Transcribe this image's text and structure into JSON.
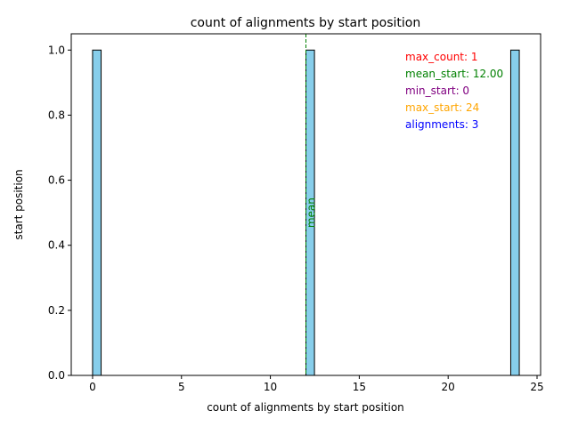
{
  "chart_data": {
    "type": "bar",
    "title": "count of alignments by start position",
    "xlabel": "count of alignments by start position",
    "ylabel": "start position",
    "xlim": [
      -1.2,
      25.2
    ],
    "ylim": [
      0,
      1.05
    ],
    "xticks": [
      0,
      5,
      10,
      15,
      20,
      25
    ],
    "yticks": [
      0.0,
      0.2,
      0.4,
      0.6,
      0.8,
      1.0
    ],
    "bars": [
      {
        "start": 0.0,
        "end": 0.48,
        "value": 1
      },
      {
        "start": 12.0,
        "end": 12.48,
        "value": 1
      },
      {
        "start": 23.52,
        "end": 24.0,
        "value": 1
      }
    ],
    "bar_color": "#87ceeb",
    "bar_edge_color": "#000000",
    "mean_line": {
      "x": 12.0,
      "label": "mean",
      "color": "#008000"
    },
    "annotations": [
      {
        "text": "max_count: 1",
        "color": "#ff0000"
      },
      {
        "text": "mean_start: 12.00",
        "color": "#008000"
      },
      {
        "text": "min_start: 0",
        "color": "#800080"
      },
      {
        "text": "max_start: 24",
        "color": "#ffa500"
      },
      {
        "text": "alignments: 3",
        "color": "#0000ff"
      }
    ],
    "grid": false,
    "legend": "none"
  }
}
